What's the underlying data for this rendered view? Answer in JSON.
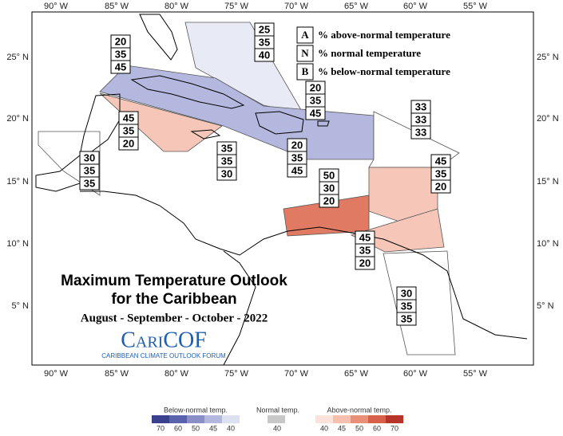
{
  "axes": {
    "lon": [
      "90° W",
      "85° W",
      "80° W",
      "75° W",
      "70° W",
      "65° W",
      "60° W",
      "55° W"
    ],
    "lat": [
      "25° N",
      "20° N",
      "15° N",
      "10° N",
      "5° N"
    ]
  },
  "regions": [
    {
      "values": [
        25,
        35,
        40
      ]
    },
    {
      "values": [
        20,
        35,
        45
      ]
    },
    {
      "values": [
        45,
        35,
        20
      ]
    },
    {
      "values": [
        30,
        35,
        35
      ]
    },
    {
      "values": [
        35,
        35,
        30
      ]
    },
    {
      "values": [
        20,
        35,
        45
      ]
    },
    {
      "values": [
        20,
        35,
        45
      ]
    },
    {
      "values": [
        33,
        33,
        33
      ]
    },
    {
      "values": [
        45,
        35,
        20
      ]
    },
    {
      "values": [
        50,
        30,
        20
      ]
    },
    {
      "values": [
        45,
        35,
        20
      ]
    },
    {
      "values": [
        30,
        35,
        35
      ]
    }
  ],
  "legend": [
    {
      "key": "A",
      "text": "% above-normal temperature"
    },
    {
      "key": "N",
      "text": "% normal temperature"
    },
    {
      "key": "B",
      "text": "% below-normal temperature"
    }
  ],
  "title": {
    "line1": "Maximum Temperature Outlook",
    "line2": "for the Caribbean",
    "period": "August - September - October - 2022",
    "logo": "CariCOF",
    "logo_sub": "CARIBBEAN CLIMATE OUTLOOK FORUM"
  },
  "colorbar": {
    "below": {
      "title": "Below-normal temp.",
      "ticks": [
        70,
        60,
        50,
        45,
        40
      ]
    },
    "normal": {
      "title": "Normal temp.",
      "ticks": [
        40
      ]
    },
    "above": {
      "title": "Above-normal temp.",
      "ticks": [
        40,
        45,
        50,
        60,
        70
      ]
    }
  }
}
